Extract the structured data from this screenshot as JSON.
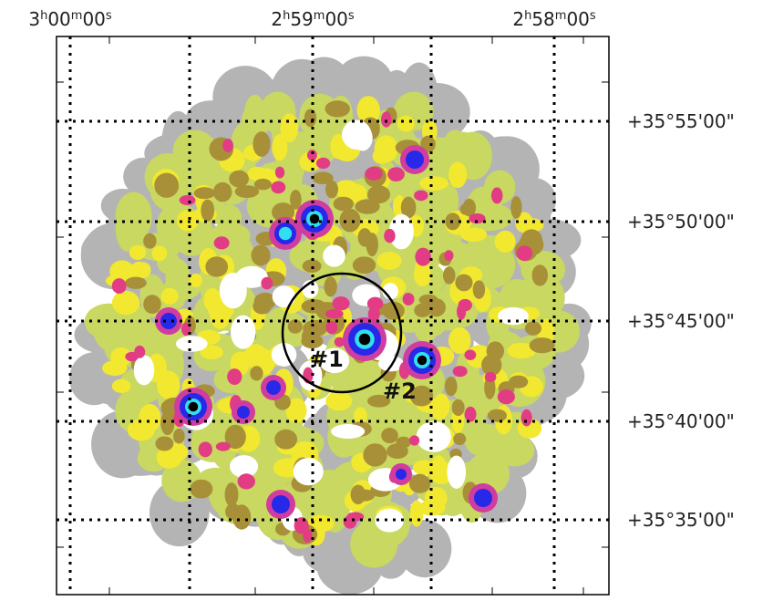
{
  "ra_labels": [
    [
      "3",
      "h",
      "00",
      "m",
      "00",
      "s"
    ],
    [
      "2",
      "h",
      "59",
      "m",
      "00",
      "s"
    ],
    [
      "2",
      "h",
      "58",
      "m",
      "00",
      "s"
    ]
  ],
  "dec_labels": [
    "+35°55'00\"",
    "+35°50'00\"",
    "+35°45'00\"",
    "+35°40'00\"",
    "+35°35'00\""
  ],
  "sources": [
    "#1",
    "#2"
  ]
}
